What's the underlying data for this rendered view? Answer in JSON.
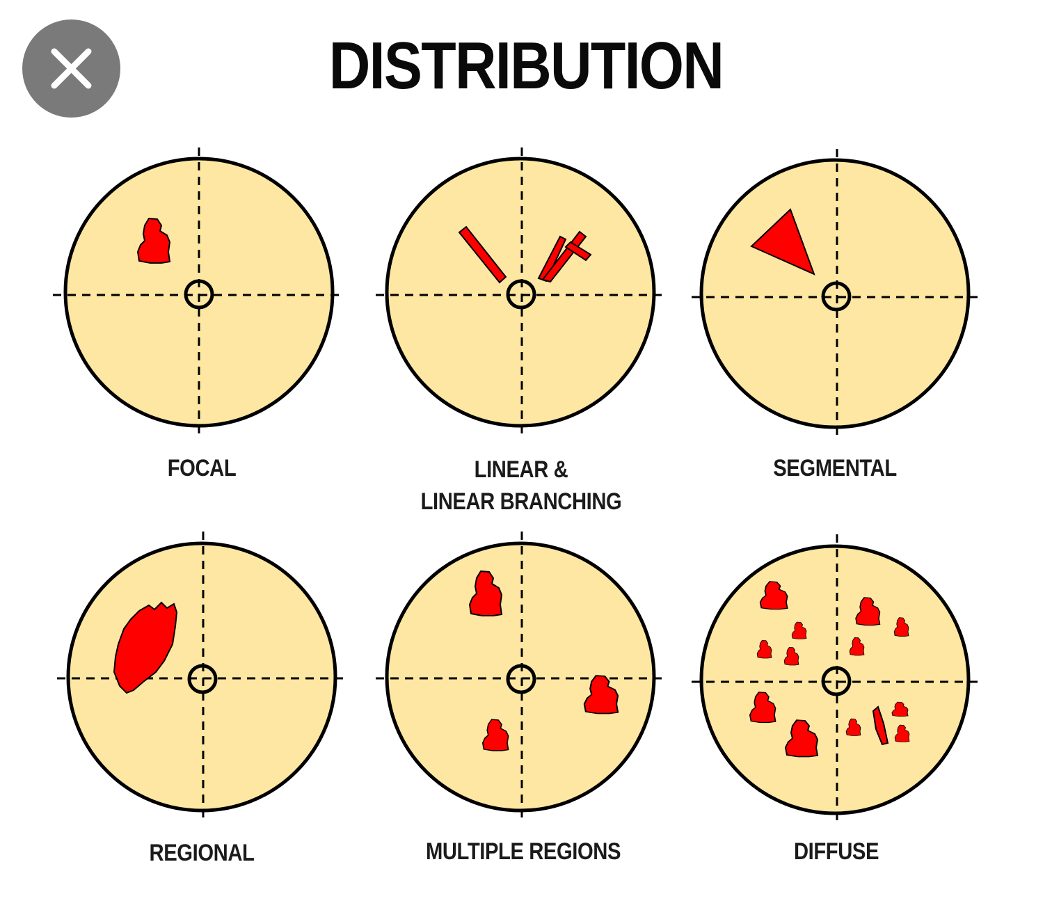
{
  "title": "DISTRIBUTION",
  "close_icon": "close-icon",
  "colors": {
    "circle_fill": "#fde7a2",
    "lesion": "#ff0000",
    "outline": "#000000",
    "close_bg": "#7a7a7a"
  },
  "panels": [
    {
      "id": "focal",
      "label_lines": [
        "FOCAL"
      ]
    },
    {
      "id": "linear",
      "label_lines": [
        "LINEAR &",
        "LINEAR BRANCHING"
      ]
    },
    {
      "id": "segmental",
      "label_lines": [
        "SEGMENTAL"
      ]
    },
    {
      "id": "regional",
      "label_lines": [
        "REGIONAL"
      ]
    },
    {
      "id": "multiple-regions",
      "label_lines": [
        "MULTIPLE REGIONS"
      ]
    },
    {
      "id": "diffuse",
      "label_lines": [
        "DIFFUSE"
      ]
    }
  ]
}
